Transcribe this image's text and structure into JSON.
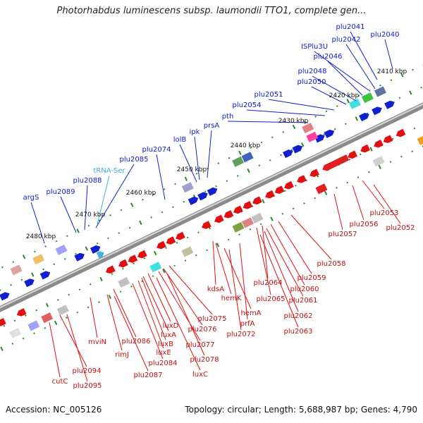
{
  "title": "Photorhabdus luminescens subsp. laumondii TTO1, complete gen...",
  "footer": {
    "accession": "Accession: NC_005126",
    "summary": "Topology: circular; Length: 5,688,987 bp; Genes: 4,790"
  },
  "colors": {
    "forward": "#1020d0",
    "reverse": "#e01010",
    "trna": "#40b0e0",
    "backbone": "#888888",
    "tick": "#2a8a2a"
  },
  "scale_labels": [
    {
      "name": "scale-2410",
      "text": "2410 kbp"
    },
    {
      "name": "scale-2420",
      "text": "2420 kbp"
    },
    {
      "name": "scale-2430",
      "text": "2430 kbp"
    },
    {
      "name": "scale-2440",
      "text": "2440 kbp"
    },
    {
      "name": "scale-2450",
      "text": "2450 kbp"
    },
    {
      "name": "scale-2460",
      "text": "2460 kbp"
    },
    {
      "name": "scale-2470",
      "text": "2470 kbp"
    },
    {
      "name": "scale-2480",
      "text": "2480 kbp"
    }
  ],
  "forward_labels": [
    {
      "name": "plu2041",
      "text": "plu2041"
    },
    {
      "name": "plu2040",
      "text": "plu2040"
    },
    {
      "name": "plu2042",
      "text": "plu2042"
    },
    {
      "name": "ISPlu3U",
      "text": "ISPlu3U"
    },
    {
      "name": "plu2046",
      "text": "plu2046"
    },
    {
      "name": "plu2048",
      "text": "plu2048"
    },
    {
      "name": "plu2050",
      "text": "plu2050"
    },
    {
      "name": "plu2051",
      "text": "plu2051"
    },
    {
      "name": "plu2054",
      "text": "plu2054"
    },
    {
      "name": "pth",
      "text": "pth"
    },
    {
      "name": "prsA",
      "text": "prsA"
    },
    {
      "name": "ipk",
      "text": "ipk"
    },
    {
      "name": "lolB",
      "text": "lolB"
    },
    {
      "name": "plu2074",
      "text": "plu2074"
    },
    {
      "name": "plu2085",
      "text": "plu2085"
    },
    {
      "name": "tRNA-Ser",
      "text": "tRNA-Ser"
    },
    {
      "name": "plu2088",
      "text": "plu2088"
    },
    {
      "name": "plu2089",
      "text": "plu2089"
    },
    {
      "name": "argS",
      "text": "argS"
    }
  ],
  "reverse_labels": [
    {
      "name": "plu2053",
      "text": "plu2053"
    },
    {
      "name": "plu2056",
      "text": "plu2056"
    },
    {
      "name": "plu2052",
      "text": "plu2052"
    },
    {
      "name": "plu2057",
      "text": "plu2057"
    },
    {
      "name": "plu2058",
      "text": "plu2058"
    },
    {
      "name": "plu2059",
      "text": "plu2059"
    },
    {
      "name": "plu2064",
      "text": "plu2064"
    },
    {
      "name": "plu2060",
      "text": "plu2060"
    },
    {
      "name": "plu2065",
      "text": "plu2065"
    },
    {
      "name": "plu2061",
      "text": "plu2061"
    },
    {
      "name": "kdsA",
      "text": "kdsA"
    },
    {
      "name": "hemK",
      "text": "hemK"
    },
    {
      "name": "hemA",
      "text": "hemA"
    },
    {
      "name": "plu2062",
      "text": "plu2062"
    },
    {
      "name": "prfA",
      "text": "prfA"
    },
    {
      "name": "plu2063",
      "text": "plu2063"
    },
    {
      "name": "plu2075",
      "text": "plu2075"
    },
    {
      "name": "luxD",
      "text": "luxD"
    },
    {
      "name": "plu2076",
      "text": "plu2076"
    },
    {
      "name": "plu2072",
      "text": "plu2072"
    },
    {
      "name": "luxA",
      "text": "luxA"
    },
    {
      "name": "luxB",
      "text": "luxB"
    },
    {
      "name": "plu2077",
      "text": "plu2077"
    },
    {
      "name": "plu2086",
      "text": "plu2086"
    },
    {
      "name": "luxE",
      "text": "luxE"
    },
    {
      "name": "mviN",
      "text": "mviN"
    },
    {
      "name": "plu2078",
      "text": "plu2078"
    },
    {
      "name": "rimJ",
      "text": "rimJ"
    },
    {
      "name": "plu2084",
      "text": "plu2084"
    },
    {
      "name": "luxC",
      "text": "luxC"
    },
    {
      "name": "plu2087",
      "text": "plu2087"
    },
    {
      "name": "plu2094",
      "text": "plu2094"
    },
    {
      "name": "cutC",
      "text": "cutC"
    },
    {
      "name": "plu2095",
      "text": "plu2095"
    }
  ]
}
